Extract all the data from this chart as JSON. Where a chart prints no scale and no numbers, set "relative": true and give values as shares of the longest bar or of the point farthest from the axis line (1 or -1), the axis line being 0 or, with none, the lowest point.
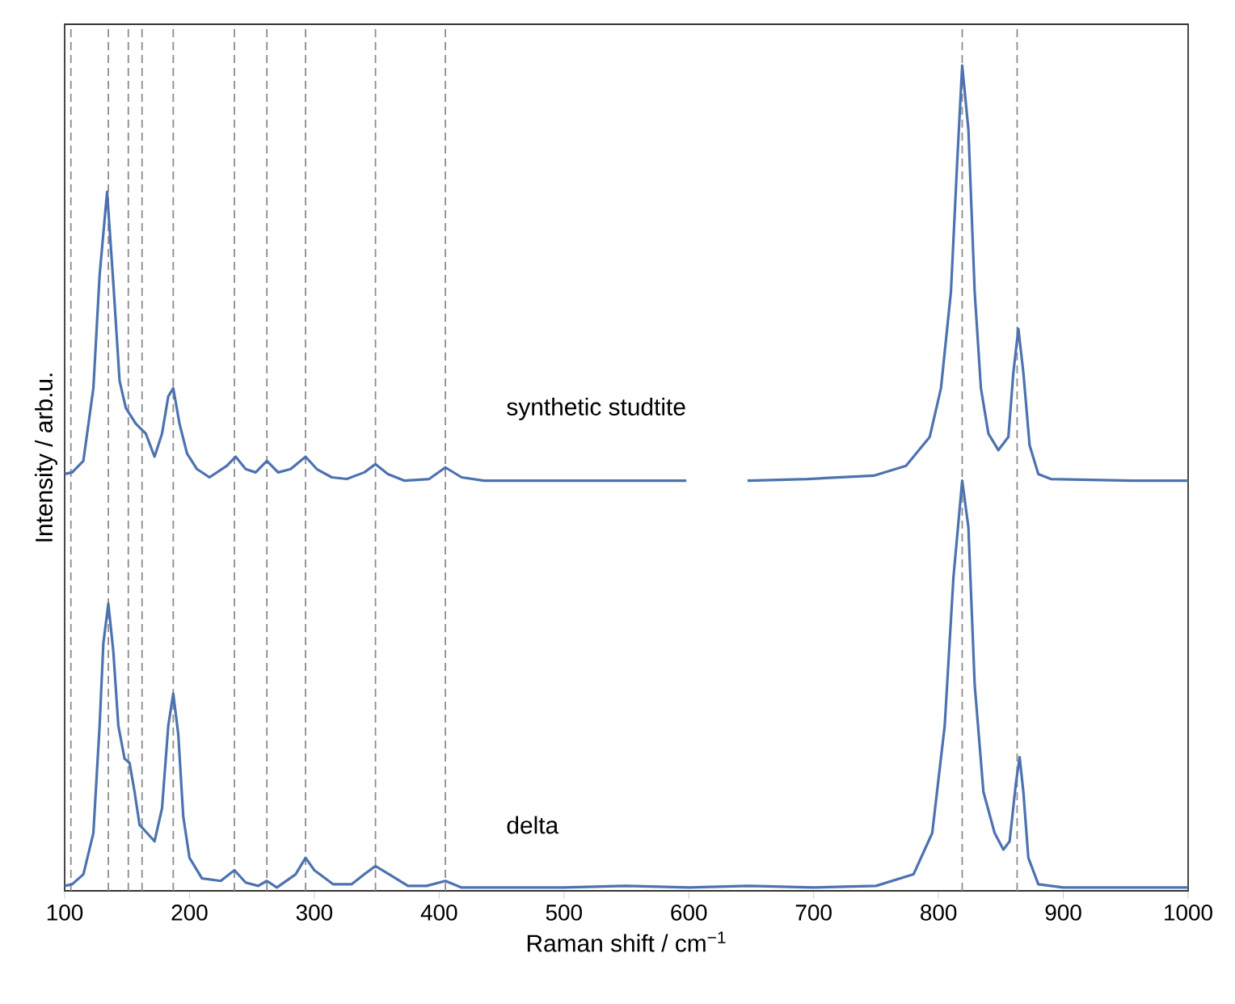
{
  "chart_data": {
    "type": "line",
    "xlabel": "Raman shift / cm$^{−1}$",
    "ylabel": "Intensity / arb.u.",
    "relative": true,
    "xlim": [
      100,
      1000
    ],
    "xticks": [
      100,
      200,
      300,
      400,
      500,
      600,
      700,
      800,
      900,
      1000
    ],
    "grid": false,
    "series": [
      {
        "name": "synthetic studtite",
        "color": "#4c72b0",
        "x": [
          100,
          106,
          115,
          123,
          128,
          134,
          139,
          144,
          149,
          157,
          165,
          172,
          178,
          183,
          187,
          192,
          198,
          206,
          216,
          230,
          237,
          245,
          253,
          262,
          271,
          281,
          293,
          302,
          314,
          326,
          340,
          349,
          359,
          372,
          392,
          405,
          418,
          436,
          500,
          566,
          598,
          620,
          647,
          695,
          748,
          774,
          793,
          802,
          810,
          815,
          819,
          824,
          829,
          834,
          840,
          848,
          856,
          860,
          864,
          868,
          873,
          880,
          890,
          955,
          1000
        ],
        "values": [
          0.505,
          0.507,
          0.521,
          0.609,
          0.746,
          0.847,
          0.736,
          0.618,
          0.585,
          0.566,
          0.554,
          0.526,
          0.554,
          0.599,
          0.609,
          0.566,
          0.53,
          0.511,
          0.501,
          0.515,
          0.526,
          0.511,
          0.507,
          0.521,
          0.507,
          0.511,
          0.526,
          0.511,
          0.501,
          0.499,
          0.507,
          0.517,
          0.505,
          0.497,
          0.499,
          0.513,
          0.501,
          0.497,
          0.497,
          0.497,
          0.497,
          null,
          0.497,
          0.499,
          0.503,
          0.515,
          0.55,
          0.609,
          0.726,
          0.883,
          1.0,
          0.922,
          0.726,
          0.609,
          0.554,
          0.534,
          0.55,
          0.628,
          0.681,
          0.628,
          0.54,
          0.505,
          0.499,
          0.497,
          0.497
        ]
      },
      {
        "name": "delta",
        "color": "#4c72b0",
        "x": [
          100,
          106,
          115,
          123,
          128,
          131,
          135,
          139,
          143,
          148,
          152,
          156,
          160,
          166,
          172,
          178,
          183,
          187,
          191,
          195,
          200,
          210,
          225,
          236,
          245,
          255,
          262,
          270,
          285,
          293,
          300,
          315,
          330,
          340,
          349,
          360,
          375,
          390,
          405,
          418,
          450,
          500,
          550,
          600,
          648,
          700,
          750,
          780,
          795,
          805,
          812,
          819,
          824,
          829,
          836,
          845,
          852,
          857,
          862,
          865,
          868,
          872,
          880,
          900,
          1000
        ],
        "values": [
          0.006,
          0.008,
          0.02,
          0.07,
          0.2,
          0.3,
          0.348,
          0.29,
          0.2,
          0.16,
          0.155,
          0.12,
          0.08,
          0.07,
          0.06,
          0.1,
          0.2,
          0.239,
          0.19,
          0.09,
          0.04,
          0.015,
          0.012,
          0.025,
          0.01,
          0.006,
          0.012,
          0.004,
          0.02,
          0.04,
          0.025,
          0.008,
          0.008,
          0.02,
          0.03,
          0.02,
          0.006,
          0.006,
          0.012,
          0.004,
          0.004,
          0.004,
          0.006,
          0.004,
          0.006,
          0.004,
          0.006,
          0.02,
          0.07,
          0.2,
          0.38,
          0.497,
          0.44,
          0.25,
          0.12,
          0.07,
          0.05,
          0.06,
          0.13,
          0.162,
          0.12,
          0.04,
          0.008,
          0.004,
          0.004
        ]
      }
    ],
    "ref_lines": [
      {
        "axis": "x",
        "value": 105,
        "color": "#8c8c8c",
        "line_style": "dashed"
      },
      {
        "axis": "x",
        "value": 135,
        "color": "#8c8c8c",
        "line_style": "dashed"
      },
      {
        "axis": "x",
        "value": 151,
        "color": "#8c8c8c",
        "line_style": "dashed"
      },
      {
        "axis": "x",
        "value": 162,
        "color": "#8c8c8c",
        "line_style": "dashed"
      },
      {
        "axis": "x",
        "value": 187,
        "color": "#8c8c8c",
        "line_style": "dashed"
      },
      {
        "axis": "x",
        "value": 236,
        "color": "#8c8c8c",
        "line_style": "dashed"
      },
      {
        "axis": "x",
        "value": 262,
        "color": "#8c8c8c",
        "line_style": "dashed"
      },
      {
        "axis": "x",
        "value": 293,
        "color": "#8c8c8c",
        "line_style": "dashed"
      },
      {
        "axis": "x",
        "value": 349,
        "color": "#8c8c8c",
        "line_style": "dashed"
      },
      {
        "axis": "x",
        "value": 405,
        "color": "#8c8c8c",
        "line_style": "dashed"
      },
      {
        "axis": "x",
        "value": 819,
        "color": "#8c8c8c",
        "line_style": "dashed"
      },
      {
        "axis": "x",
        "value": 863,
        "color": "#8c8c8c",
        "line_style": "dashed"
      }
    ]
  }
}
